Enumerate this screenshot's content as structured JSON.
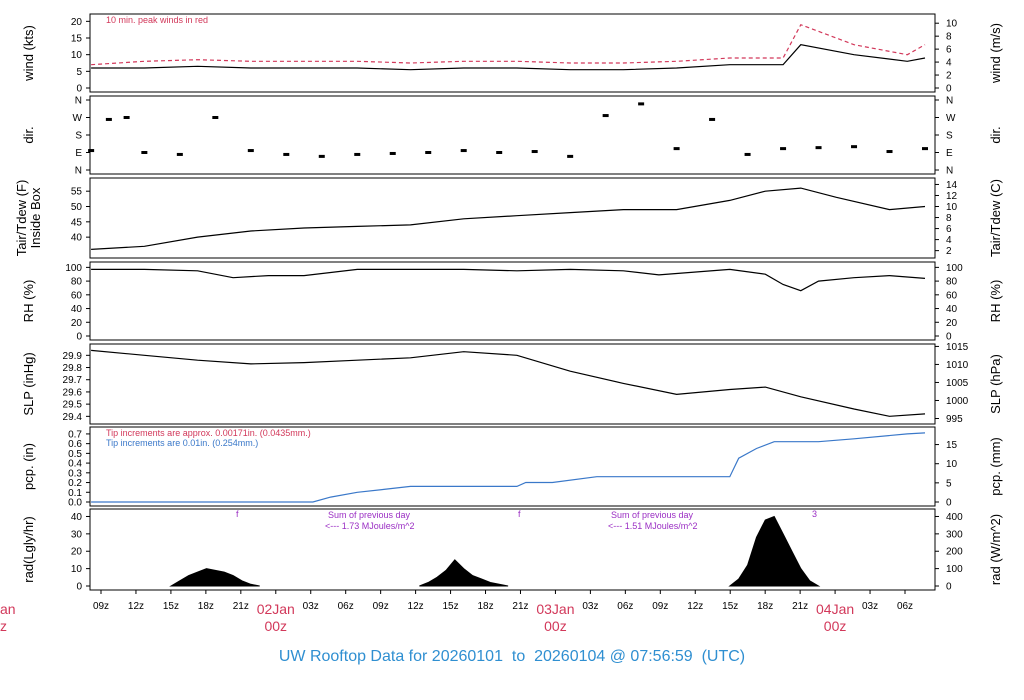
{
  "colors": {
    "frame": "#000000",
    "red": "#d2385a",
    "blue": "#3a78c9",
    "purple": "#9b2fc4",
    "footer": "#2f8fd1"
  },
  "footer": {
    "title": "UW Rooftop Data for 20260101  to  20260104 @ 07:56:59  (UTC)"
  },
  "chart_data": [
    {
      "type": "line",
      "panel": "wind",
      "ylabel_left": "wind (kts)",
      "ylabel_right": "wind (m/s)",
      "yticks_left": [
        "0",
        "5",
        "10",
        "15",
        "20"
      ],
      "yticks_right": [
        "0",
        "2",
        "4",
        "6",
        "8",
        "10"
      ],
      "ylim": [
        0,
        21
      ],
      "annotation": "10 min. peak winds in red",
      "x_hours": [
        0,
        6,
        12,
        18,
        24,
        30,
        36,
        42,
        48,
        54,
        60,
        66,
        72,
        78,
        80,
        86,
        92,
        94
      ],
      "series": [
        {
          "values": [
            6,
            6,
            6.5,
            6,
            6,
            6,
            5.5,
            6,
            6,
            5.5,
            5.5,
            6,
            7,
            7,
            13,
            10,
            8,
            9
          ]
        },
        {
          "values": [
            7,
            8,
            8.5,
            8,
            8,
            8,
            7.5,
            8,
            8,
            7.5,
            7.5,
            8,
            9,
            9,
            19,
            13,
            10,
            13
          ]
        }
      ]
    },
    {
      "type": "scatter",
      "panel": "dir",
      "ylabel_left": "dir.",
      "ylabel_right": "dir.",
      "yticks_left": [
        "N",
        "E",
        "S",
        "W",
        "N"
      ],
      "yticks_right": [
        "N",
        "E",
        "S",
        "W",
        "N"
      ],
      "ylim": [
        0,
        360
      ],
      "x_hours": [
        0,
        2,
        4,
        6,
        10,
        14,
        18,
        22,
        26,
        30,
        34,
        38,
        42,
        46,
        50,
        54,
        58,
        62,
        66,
        70,
        74,
        78,
        82,
        86,
        90,
        94
      ],
      "values": [
        100,
        260,
        270,
        90,
        80,
        270,
        100,
        80,
        70,
        80,
        85,
        90,
        100,
        90,
        95,
        70,
        280,
        340,
        110,
        260,
        80,
        110,
        115,
        120,
        95,
        110
      ]
    },
    {
      "type": "line",
      "panel": "temp",
      "ylabel_left": "Tair/Tdew (F)\nInside Box",
      "ylabel_right": "Tair/Tdew (C)",
      "yticks_left": [
        "40",
        "45",
        "50",
        "55"
      ],
      "yticks_right": [
        "2",
        "4",
        "6",
        "8",
        "10",
        "12",
        "14"
      ],
      "ylim": [
        34.5,
        58
      ],
      "x_hours": [
        0,
        6,
        12,
        18,
        24,
        30,
        36,
        42,
        48,
        54,
        60,
        66,
        72,
        76,
        80,
        84,
        90,
        94
      ],
      "values": [
        36,
        37,
        40,
        42,
        43,
        43.5,
        44,
        46,
        47,
        48,
        49,
        49,
        52,
        55,
        56,
        53,
        49,
        50
      ]
    },
    {
      "type": "line",
      "panel": "rh",
      "ylabel_left": "RH (%)",
      "ylabel_right": "RH (%)",
      "yticks_left": [
        "0",
        "20",
        "40",
        "60",
        "80",
        "100"
      ],
      "yticks_right": [
        "0",
        "20",
        "40",
        "60",
        "80",
        "100"
      ],
      "ylim": [
        0,
        102
      ],
      "x_hours": [
        0,
        6,
        12,
        16,
        20,
        24,
        30,
        36,
        42,
        48,
        54,
        60,
        64,
        72,
        76,
        78,
        80,
        82,
        86,
        90,
        94
      ],
      "values": [
        97,
        97,
        95,
        85,
        88,
        88,
        97,
        97,
        97,
        95,
        97,
        95,
        89,
        97,
        90,
        75,
        66,
        80,
        85,
        88,
        84
      ]
    },
    {
      "type": "line",
      "panel": "slp",
      "ylabel_left": "SLP (inHg)",
      "ylabel_right": "SLP (hPa)",
      "yticks_left": [
        "29.4",
        "29.5",
        "29.6",
        "29.7",
        "29.8",
        "29.9"
      ],
      "yticks_right": [
        "995",
        "1000",
        "1005",
        "1010",
        "1015"
      ],
      "ylim": [
        29.37,
        29.96
      ],
      "x_hours": [
        0,
        6,
        12,
        18,
        24,
        30,
        36,
        42,
        48,
        54,
        60,
        66,
        72,
        76,
        80,
        86,
        90,
        94
      ],
      "values": [
        29.94,
        29.9,
        29.86,
        29.83,
        29.84,
        29.86,
        29.88,
        29.93,
        29.9,
        29.77,
        29.67,
        29.58,
        29.62,
        29.64,
        29.56,
        29.46,
        29.4,
        29.42
      ]
    },
    {
      "type": "line",
      "panel": "pcp",
      "ylabel_left": "pcp. (in)",
      "ylabel_right": "pcp. (mm)",
      "yticks_left": [
        "0.0",
        "0.1",
        "0.2",
        "0.3",
        "0.4",
        "0.5",
        "0.6",
        "0.7"
      ],
      "yticks_right": [
        "0",
        "5",
        "10",
        "15"
      ],
      "ylim": [
        0,
        0.73
      ],
      "notes": [
        "Tip increments are approx. 0.00171in. (0.0435mm.)",
        "Tip increments are 0.01in. (0.254mm.)"
      ],
      "x_hours": [
        0,
        25,
        27,
        30,
        33,
        36,
        48,
        49,
        52,
        57,
        72,
        73,
        75,
        77,
        82,
        86,
        92,
        94
      ],
      "values": [
        0,
        0,
        0.05,
        0.1,
        0.13,
        0.16,
        0.16,
        0.2,
        0.2,
        0.26,
        0.26,
        0.45,
        0.55,
        0.62,
        0.62,
        0.65,
        0.7,
        0.71
      ]
    },
    {
      "type": "area",
      "panel": "rad",
      "ylabel_left": "rad(Lgly/hr)",
      "ylabel_right": "rad (W/m^2)",
      "yticks_left": [
        "0",
        "10",
        "20",
        "30",
        "40"
      ],
      "yticks_right": [
        "0",
        "100",
        "200",
        "300",
        "400"
      ],
      "ylim": [
        0,
        42
      ],
      "annotations": [
        "f",
        "Sum of previous day",
        "<--- 1.73 MJoules/m^2",
        "f",
        "Sum of previous day",
        "<--- 1.51 MJoules/m^2",
        "3"
      ],
      "x_hours": [
        9,
        10,
        11,
        12,
        13,
        14,
        15,
        16,
        17,
        18,
        19,
        37,
        38,
        39,
        40,
        41,
        42,
        43,
        44,
        45,
        46,
        47,
        72,
        73,
        74,
        75,
        76,
        77,
        78,
        79,
        80,
        81,
        82
      ],
      "values": [
        0,
        3,
        6,
        8,
        10,
        9,
        8,
        6,
        3,
        1,
        0,
        0,
        2,
        5,
        9,
        15,
        10,
        6,
        4,
        2,
        1,
        0,
        0,
        4,
        12,
        28,
        38,
        40,
        30,
        20,
        10,
        3,
        0
      ],
      "xticks": [
        "09z",
        "12z",
        "15z",
        "18z",
        "21z",
        "02Jan\n00z",
        "03z",
        "06z",
        "09z",
        "12z",
        "15z",
        "18z",
        "21z",
        "03Jan\n00z",
        "03z",
        "06z",
        "09z",
        "12z",
        "15z",
        "18z",
        "21z",
        "04Jan\n00z",
        "03z",
        "06z"
      ],
      "left_cut_label": "an\nz"
    }
  ]
}
